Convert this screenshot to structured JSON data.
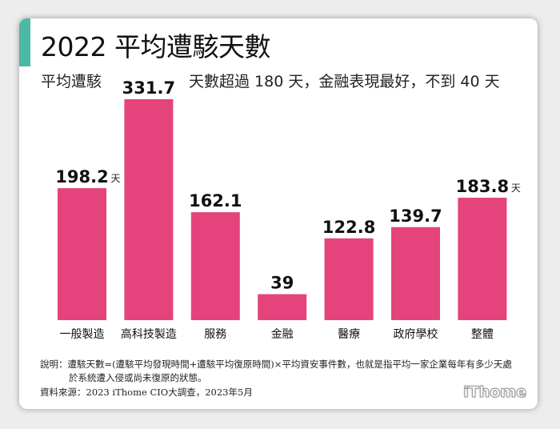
{
  "title": "2022 平均遭駭天數",
  "subtitle_part1": "平均遭駭",
  "subtitle_part2": "天數超過 180 天，金融表現最好，不到 40 天",
  "accent_color": "#4db8a6",
  "bar_color": "#e5437b",
  "chart_data": {
    "type": "bar",
    "categories": [
      "一般製造",
      "高科技製造",
      "服務",
      "金融",
      "醫療",
      "政府學校",
      "整體"
    ],
    "values": [
      198.2,
      331.7,
      162.1,
      39,
      122.8,
      139.7,
      183.8
    ],
    "labels": [
      "198.2",
      "331.7",
      "162.1",
      "39",
      "122.8",
      "139.7",
      "183.8"
    ],
    "unit": "天",
    "unit_shown_on": [
      0,
      6
    ]
  },
  "notes": {
    "line1": "說明：遭駭天數=(遭駭平均發現時間+遭駭平均復原時間)×平均資安事件數，也就是指平均一家企業每年有多少天處",
    "line2": "於系統遭入侵或尚未復原的狀態。",
    "source": "資料來源：2023 iThome CIO大調查，2023年5月"
  },
  "logo": "iThome"
}
